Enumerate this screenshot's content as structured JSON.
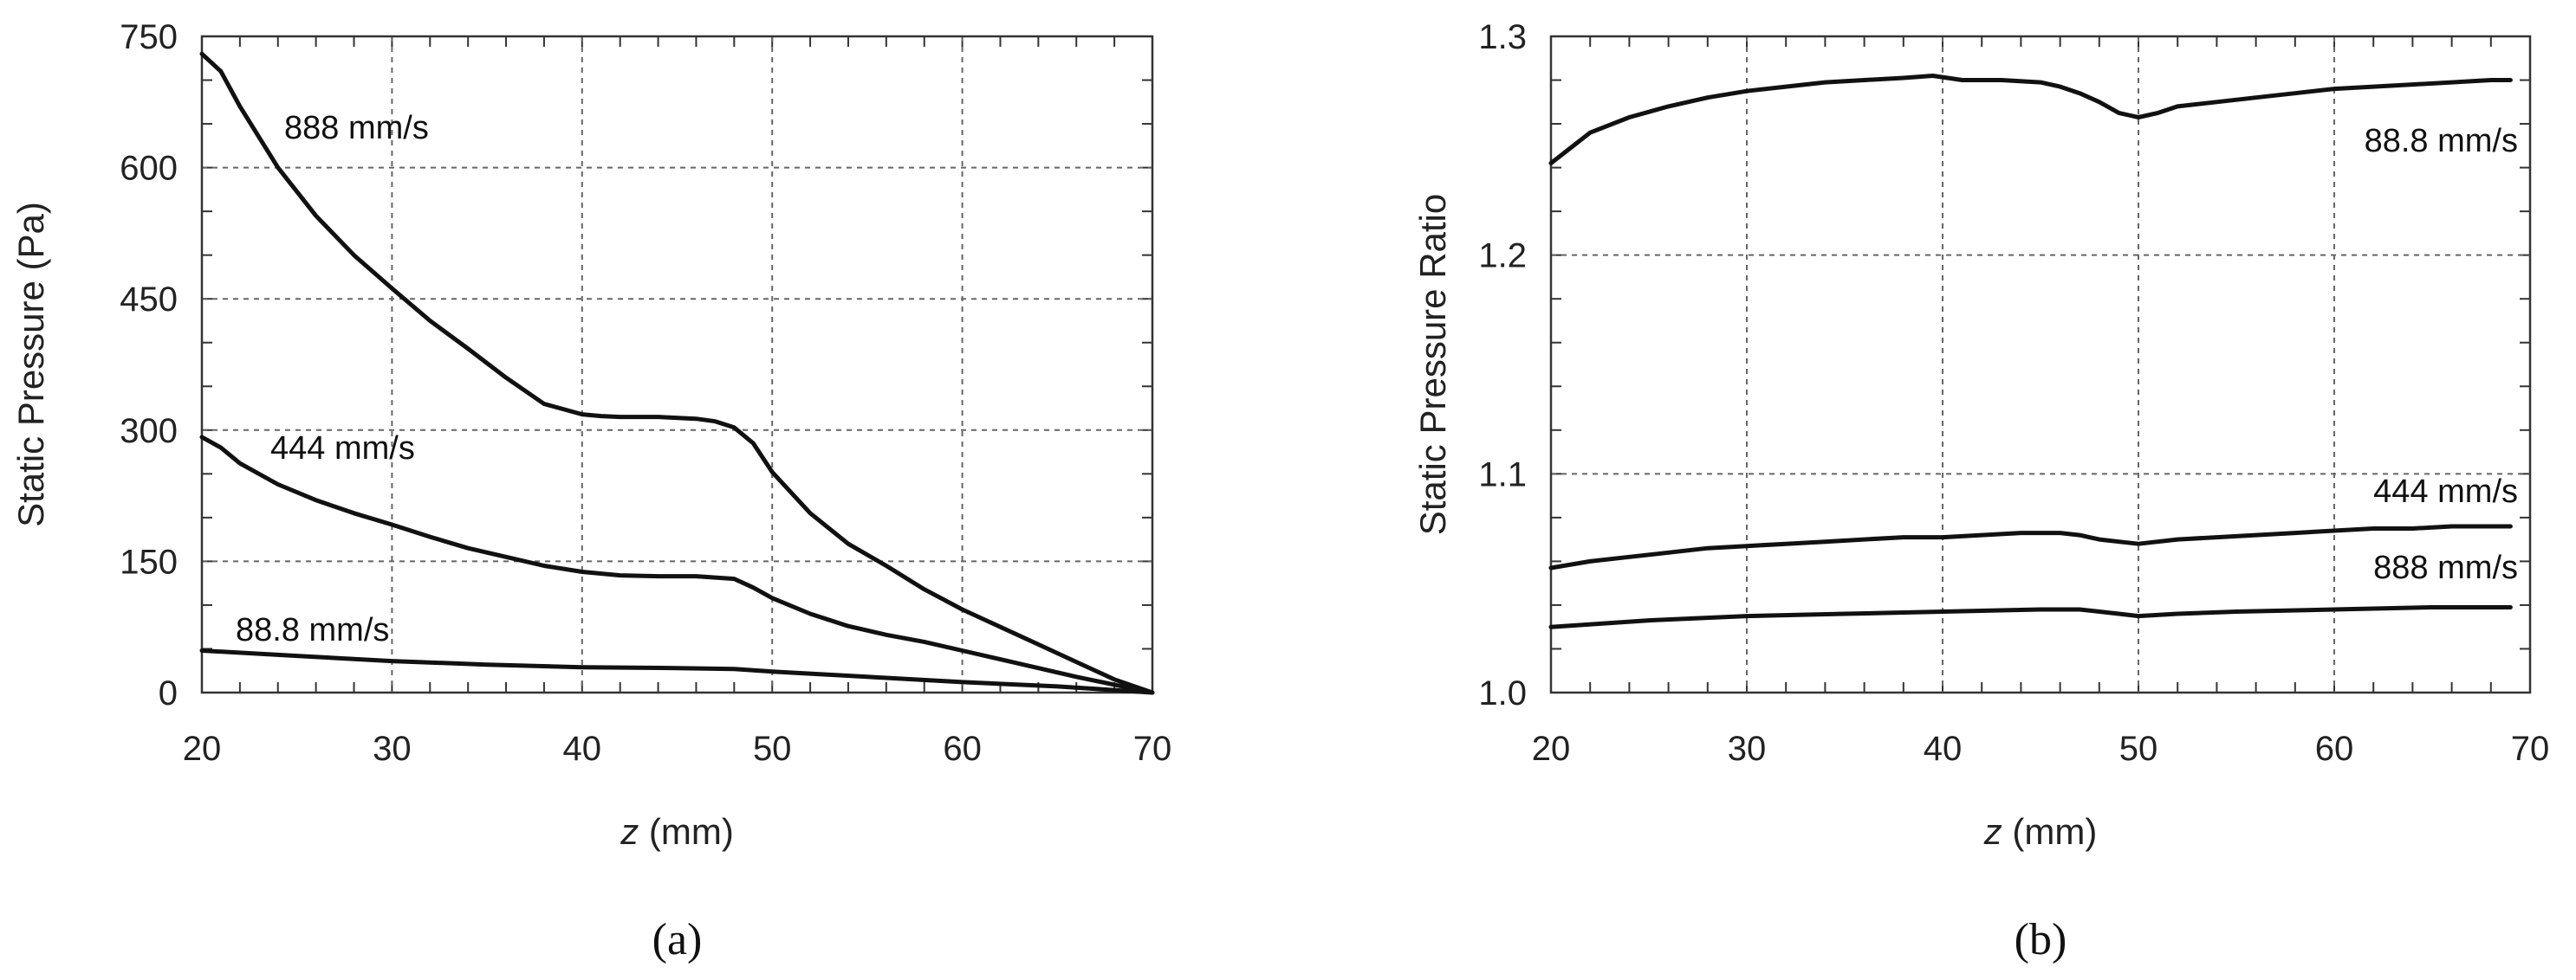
{
  "chart_data": [
    {
      "type": "line",
      "caption": "(a)",
      "xlabel_italic": "z",
      "xlabel_rest": " (mm)",
      "ylabel": "Static Pressure (Pa)",
      "xlim": [
        20,
        70
      ],
      "ylim": [
        0,
        750
      ],
      "xticks": [
        20,
        30,
        40,
        50,
        60,
        70
      ],
      "yticks": [
        0,
        150,
        300,
        450,
        600,
        750
      ],
      "grid": true,
      "series": [
        {
          "name": "888 mm/s",
          "x": [
            20,
            21,
            22,
            23,
            24,
            26,
            28,
            30,
            32,
            34,
            36,
            38,
            40,
            41,
            42,
            44,
            46,
            47,
            48,
            49,
            50,
            52,
            54,
            56,
            58,
            60,
            62,
            64,
            66,
            68,
            70
          ],
          "y": [
            730,
            710,
            670,
            635,
            600,
            545,
            500,
            462,
            425,
            393,
            360,
            330,
            318,
            316,
            315,
            315,
            313,
            310,
            303,
            285,
            252,
            205,
            170,
            145,
            118,
            95,
            75,
            55,
            35,
            15,
            0
          ]
        },
        {
          "name": "444 mm/s",
          "x": [
            20,
            21,
            22,
            24,
            26,
            28,
            30,
            32,
            34,
            36,
            38,
            40,
            42,
            44,
            46,
            48,
            49,
            50,
            52,
            54,
            56,
            58,
            60,
            62,
            64,
            66,
            68,
            70
          ],
          "y": [
            292,
            280,
            262,
            238,
            220,
            205,
            192,
            178,
            165,
            155,
            145,
            138,
            134,
            133,
            133,
            130,
            120,
            108,
            90,
            76,
            66,
            58,
            48,
            38,
            28,
            18,
            9,
            0
          ]
        },
        {
          "name": "88.8 mm/s",
          "x": [
            20,
            25,
            30,
            35,
            40,
            45,
            48,
            50,
            55,
            60,
            65,
            70
          ],
          "y": [
            48,
            42,
            36,
            32,
            29,
            28,
            27,
            24,
            18,
            12,
            7,
            0
          ]
        }
      ]
    },
    {
      "type": "line",
      "caption": "(b)",
      "xlabel_italic": "z",
      "xlabel_rest": " (mm)",
      "ylabel": "Static Pressure Ratio",
      "xlim": [
        20,
        70
      ],
      "ylim": [
        1.0,
        1.3
      ],
      "xticks": [
        20,
        30,
        40,
        50,
        60,
        70
      ],
      "yticks": [
        "1.0",
        "1.1",
        "1.2",
        "1.3"
      ],
      "grid": true,
      "series": [
        {
          "name": "88.8 mm/s",
          "x": [
            20,
            21,
            22,
            24,
            26,
            28,
            30,
            32,
            34,
            36,
            38,
            39.5,
            41,
            43,
            45,
            46,
            47,
            48,
            49,
            49.5,
            50,
            51,
            52,
            54,
            56,
            58,
            60,
            62,
            64,
            66,
            68,
            69
          ],
          "y": [
            1.242,
            1.249,
            1.256,
            1.263,
            1.268,
            1.272,
            1.275,
            1.277,
            1.279,
            1.28,
            1.281,
            1.282,
            1.28,
            1.28,
            1.279,
            1.277,
            1.274,
            1.27,
            1.265,
            1.264,
            1.263,
            1.265,
            1.268,
            1.27,
            1.272,
            1.274,
            1.276,
            1.277,
            1.278,
            1.279,
            1.28,
            1.28
          ]
        },
        {
          "name": "444 mm/s",
          "x": [
            20,
            22,
            24,
            26,
            28,
            30,
            32,
            34,
            36,
            38,
            40,
            42,
            44,
            46,
            47,
            48,
            49,
            50,
            52,
            54,
            56,
            58,
            60,
            62,
            64,
            66,
            68,
            69
          ],
          "y": [
            1.057,
            1.06,
            1.062,
            1.064,
            1.066,
            1.067,
            1.068,
            1.069,
            1.07,
            1.071,
            1.071,
            1.072,
            1.073,
            1.073,
            1.072,
            1.07,
            1.069,
            1.068,
            1.07,
            1.071,
            1.072,
            1.073,
            1.074,
            1.075,
            1.075,
            1.076,
            1.076,
            1.076
          ]
        },
        {
          "name": "888 mm/s",
          "x": [
            20,
            25,
            30,
            35,
            40,
            45,
            47,
            49,
            50,
            52,
            55,
            60,
            65,
            69
          ],
          "y": [
            1.03,
            1.033,
            1.035,
            1.036,
            1.037,
            1.038,
            1.038,
            1.036,
            1.035,
            1.036,
            1.037,
            1.038,
            1.039,
            1.039
          ]
        }
      ]
    }
  ]
}
